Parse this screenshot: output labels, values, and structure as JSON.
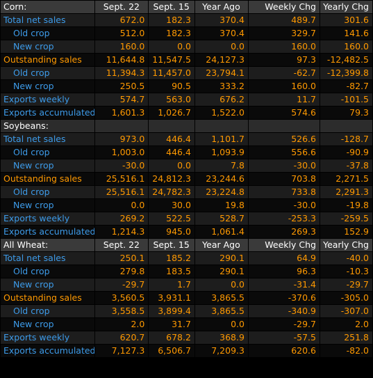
{
  "colors": {
    "label_blue": "#3d9be9",
    "value_orange": "#ff9900",
    "header_bg": "#3a3a3a"
  },
  "corn": {
    "title": "Corn:",
    "headers": [
      "Sept. 22",
      "Sept. 15",
      "Year Ago",
      "Weekly Chg",
      "Yearly Chg"
    ],
    "rows": [
      {
        "label": "Total net sales",
        "values": [
          "672.0",
          "182.3",
          "370.4",
          "489.7",
          "301.6"
        ]
      },
      {
        "label": "Old crop",
        "values": [
          "512.0",
          "182.3",
          "370.4",
          "329.7",
          "141.6"
        ]
      },
      {
        "label": "New crop",
        "values": [
          "160.0",
          "0.0",
          "0.0",
          "160.0",
          "160.0"
        ]
      },
      {
        "label": "Outstanding sales",
        "values": [
          "11,644.8",
          "11,547.5",
          "24,127.3",
          "97.3",
          "-12,482.5"
        ]
      },
      {
        "label": "Old crop",
        "values": [
          "11,394.3",
          "11,457.0",
          "23,794.1",
          "-62.7",
          "-12,399.8"
        ]
      },
      {
        "label": "New crop",
        "values": [
          "250.5",
          "90.5",
          "333.2",
          "160.0",
          "-82.7"
        ]
      },
      {
        "label": "Exports weekly",
        "values": [
          "574.7",
          "563.0",
          "676.2",
          "11.7",
          "-101.5"
        ]
      },
      {
        "label": "Exports accumulated",
        "values": [
          "1,601.3",
          "1,026.7",
          "1,522.0",
          "574.6",
          "79.3"
        ]
      }
    ]
  },
  "soybeans": {
    "title": "Soybeans:",
    "rows": [
      {
        "label": "Total net sales",
        "values": [
          "973.0",
          "446.4",
          "1,101.7",
          "526.6",
          "-128.7"
        ]
      },
      {
        "label": "Old crop",
        "values": [
          "1,003.0",
          "446.4",
          "1,093.9",
          "556.6",
          "-90.9"
        ]
      },
      {
        "label": "New crop",
        "values": [
          "-30.0",
          "0.0",
          "7.8",
          "-30.0",
          "-37.8"
        ]
      },
      {
        "label": "Outstanding sales",
        "values": [
          "25,516.1",
          "24,812.3",
          "23,244.6",
          "703.8",
          "2,271.5"
        ]
      },
      {
        "label": "Old crop",
        "values": [
          "25,516.1",
          "24,782.3",
          "23,224.8",
          "733.8",
          "2,291.3"
        ]
      },
      {
        "label": "New crop",
        "values": [
          "0.0",
          "30.0",
          "19.8",
          "-30.0",
          "-19.8"
        ]
      },
      {
        "label": "Exports weekly",
        "values": [
          "269.2",
          "522.5",
          "528.7",
          "-253.3",
          "-259.5"
        ]
      },
      {
        "label": "Exports accumulated",
        "values": [
          "1,214.3",
          "945.0",
          "1,061.4",
          "269.3",
          "152.9"
        ]
      }
    ]
  },
  "wheat": {
    "title": "All Wheat:",
    "headers": [
      "Sept. 22",
      "Sept. 15",
      "Year Ago",
      "Weekly Chg",
      "Yearly Chg"
    ],
    "rows": [
      {
        "label": "Total net sales",
        "values": [
          "250.1",
          "185.2",
          "290.1",
          "64.9",
          "-40.0"
        ]
      },
      {
        "label": "Old crop",
        "values": [
          "279.8",
          "183.5",
          "290.1",
          "96.3",
          "-10.3"
        ]
      },
      {
        "label": "New crop",
        "values": [
          "-29.7",
          "1.7",
          "0.0",
          "-31.4",
          "-29.7"
        ]
      },
      {
        "label": "Outstanding sales",
        "values": [
          "3,560.5",
          "3,931.1",
          "3,865.5",
          "-370.6",
          "-305.0"
        ]
      },
      {
        "label": "Old crop",
        "values": [
          "3,558.5",
          "3,899.4",
          "3,865.5",
          "-340.9",
          "-307.0"
        ]
      },
      {
        "label": "New crop",
        "values": [
          "2.0",
          "31.7",
          "0.0",
          "-29.7",
          "2.0"
        ]
      },
      {
        "label": "Exports weekly",
        "values": [
          "620.7",
          "678.2",
          "368.9",
          "-57.5",
          "251.8"
        ]
      },
      {
        "label": "Exports accumulated",
        "values": [
          "7,127.3",
          "6,506.7",
          "7,209.3",
          "620.6",
          "-82.0"
        ]
      }
    ]
  }
}
